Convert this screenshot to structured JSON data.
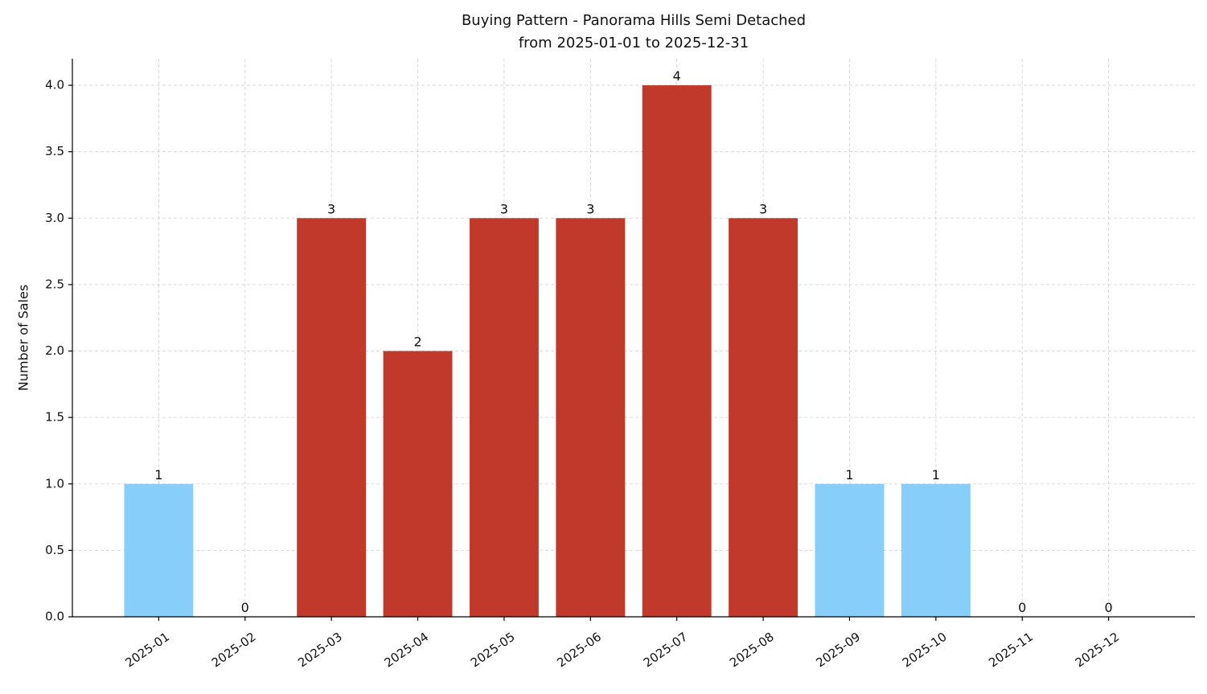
{
  "chart_data": {
    "type": "bar",
    "title": "Buying Pattern - Panorama Hills Semi Detached",
    "subtitle": "from 2025-01-01 to 2025-12-31",
    "y_label": "Number of Sales",
    "categories": [
      "2025-01",
      "2025-02",
      "2025-03",
      "2025-04",
      "2025-05",
      "2025-06",
      "2025-07",
      "2025-08",
      "2025-09",
      "2025-10",
      "2025-11",
      "2025-12"
    ],
    "values": [
      1,
      0,
      3,
      2,
      3,
      3,
      4,
      3,
      1,
      1,
      0,
      0
    ],
    "colors": [
      "#87cefa",
      "#87cefa",
      "#c0392b",
      "#c0392b",
      "#c0392b",
      "#c0392b",
      "#c0392b",
      "#c0392b",
      "#87cefa",
      "#87cefa",
      "#87cefa",
      "#87cefa"
    ],
    "ylim": [
      0,
      4.2
    ],
    "yticks": [
      {
        "value": 0,
        "label": "0.0"
      },
      0.5,
      {
        "value": 1,
        "label": "1.0"
      },
      1.5,
      {
        "value": 2,
        "label": "2.0"
      },
      2.5,
      {
        "value": 3,
        "label": "3.0"
      },
      3.5,
      {
        "value": 4,
        "label": "4.0"
      }
    ],
    "grid": true
  }
}
